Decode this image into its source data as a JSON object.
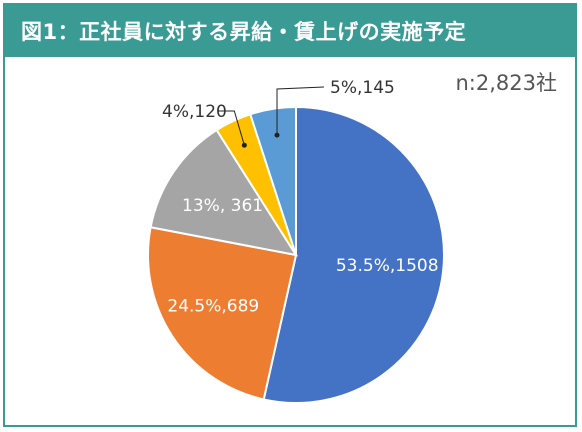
{
  "title": "図1：正社員に対する昇給・賃上げの実施予定",
  "sample_size": "n:2,823社",
  "colors": {
    "frame": "#3a9b95",
    "title_text": "#ffffff"
  },
  "chart_data": {
    "type": "pie",
    "total": 2823,
    "slices": [
      {
        "percent": 53.5,
        "count": 1508,
        "label": "53.5%,1508",
        "color": "#4472c4",
        "label_color": "#ffffff",
        "label_mode": "inside"
      },
      {
        "percent": 24.5,
        "count": 689,
        "label": "24.5%,689",
        "color": "#ed7d31",
        "label_color": "#ffffff",
        "label_mode": "inside"
      },
      {
        "percent": 13,
        "count": 361,
        "label": "13%, 361",
        "color": "#a5a5a5",
        "label_color": "#ffffff",
        "label_mode": "inside"
      },
      {
        "percent": 4,
        "count": 120,
        "label": "4%,120",
        "color": "#ffc000",
        "label_color": "#333333",
        "label_mode": "leader"
      },
      {
        "percent": 5,
        "count": 145,
        "label": "5%,145",
        "color": "#5b9bd5",
        "label_color": "#333333",
        "label_mode": "leader"
      }
    ]
  }
}
